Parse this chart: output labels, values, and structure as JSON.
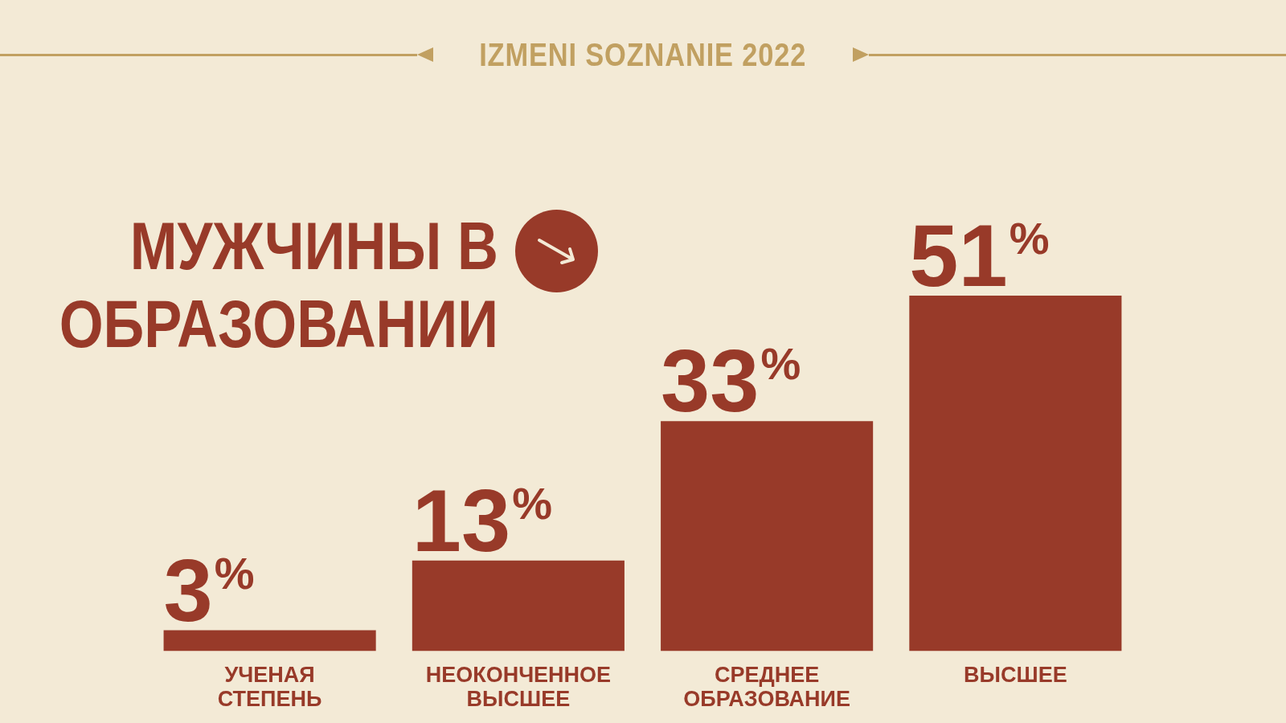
{
  "chart_data": {
    "type": "bar",
    "title": "МУЖЧИНЫ В ОБРАЗОВАНИИ",
    "annotations": [
      "IZMENI SOZNANIE 2022"
    ],
    "categories": [
      "УЧЕНАЯ СТЕПЕНЬ",
      "НЕОКОНЧЕННОЕ ВЫСШЕЕ",
      "СРЕДНЕЕ ОБРАЗОВАНИЕ",
      "ВЫСШЕЕ"
    ],
    "values": [
      3,
      13,
      33,
      51
    ],
    "value_labels": [
      "3$^{%}$",
      "13$^{%}$",
      "33$^{%}$",
      "51$^{%}$"
    ],
    "color": "#983a29"
  }
}
